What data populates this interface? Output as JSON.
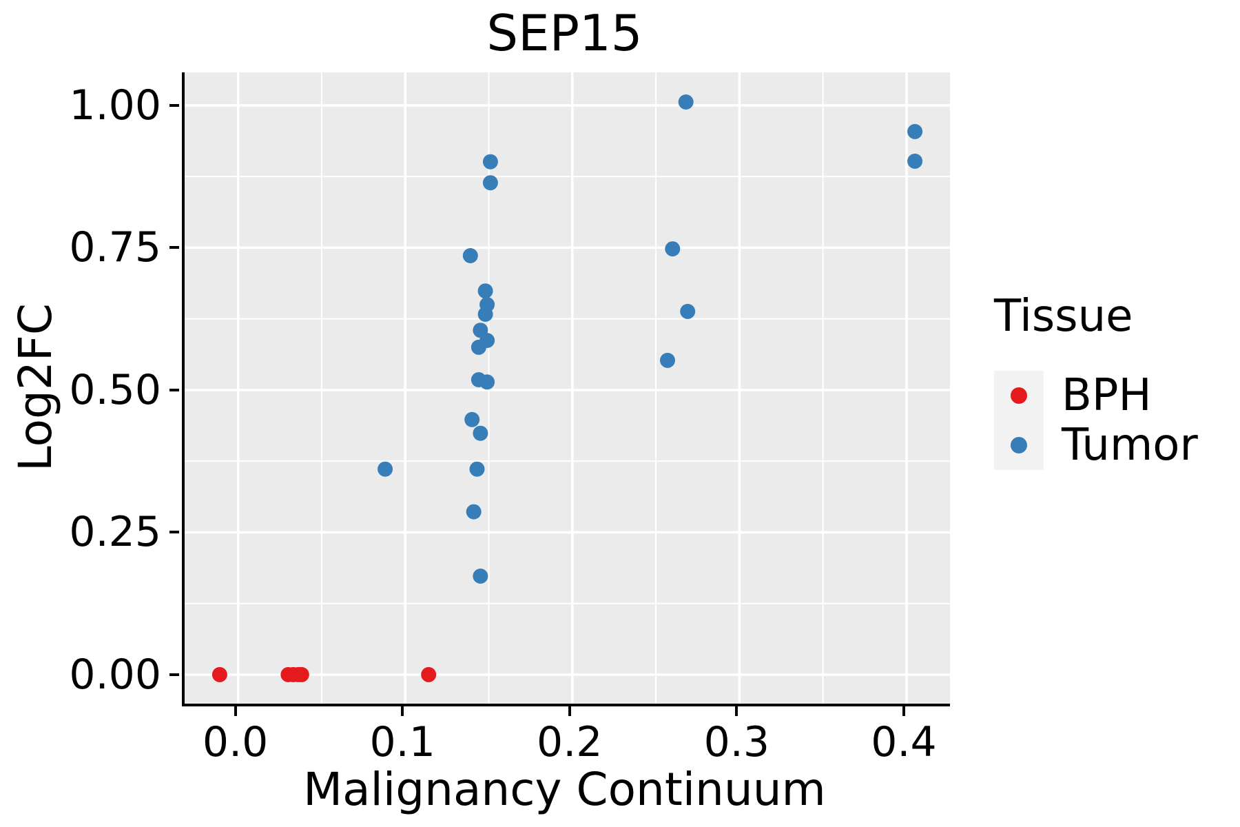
{
  "chart_data": {
    "type": "scatter",
    "title": "SEP15",
    "xlabel": "Malignancy Continuum",
    "ylabel": "Log2FC",
    "xlim": [
      -0.032,
      0.426
    ],
    "ylim": [
      -0.051,
      1.058
    ],
    "grid": true,
    "legend_position": "right",
    "panel_bg": "#EBEBEB",
    "grid_color": "#FFFFFF",
    "x_ticks": {
      "values": [
        0.0,
        0.1,
        0.2,
        0.3,
        0.4
      ],
      "labels": [
        "0.0",
        "0.1",
        "0.2",
        "0.3",
        "0.4"
      ]
    },
    "y_ticks": {
      "values": [
        0.0,
        0.25,
        0.5,
        0.75,
        1.0
      ],
      "labels": [
        "0.00",
        "0.25",
        "0.50",
        "0.75",
        "1.00"
      ]
    },
    "x_minor": [
      0.05,
      0.15,
      0.25,
      0.35
    ],
    "y_minor": [
      0.125,
      0.375,
      0.625,
      0.875
    ],
    "series": [
      {
        "name": "BPH",
        "color": "#E41A1C",
        "points": [
          [
            -0.011,
            0.0
          ],
          [
            0.03,
            0.0
          ],
          [
            0.033,
            0.0
          ],
          [
            0.036,
            0.0
          ],
          [
            0.038,
            0.0
          ],
          [
            0.114,
            0.0
          ]
        ]
      },
      {
        "name": "Tumor",
        "color": "#377EB8",
        "points": [
          [
            0.088,
            0.361
          ],
          [
            0.139,
            0.736
          ],
          [
            0.151,
            0.901
          ],
          [
            0.151,
            0.864
          ],
          [
            0.148,
            0.674
          ],
          [
            0.149,
            0.65
          ],
          [
            0.148,
            0.633
          ],
          [
            0.145,
            0.605
          ],
          [
            0.149,
            0.587
          ],
          [
            0.144,
            0.575
          ],
          [
            0.144,
            0.518
          ],
          [
            0.149,
            0.514
          ],
          [
            0.14,
            0.448
          ],
          [
            0.145,
            0.424
          ],
          [
            0.143,
            0.361
          ],
          [
            0.141,
            0.286
          ],
          [
            0.145,
            0.173
          ],
          [
            0.268,
            1.006
          ],
          [
            0.26,
            0.748
          ],
          [
            0.269,
            0.638
          ],
          [
            0.257,
            0.552
          ],
          [
            0.405,
            0.954
          ],
          [
            0.405,
            0.902
          ]
        ]
      }
    ]
  },
  "legend": {
    "title": "Tissue",
    "items": [
      {
        "label": "BPH",
        "color": "#E41A1C"
      },
      {
        "label": "Tumor",
        "color": "#377EB8"
      }
    ]
  }
}
